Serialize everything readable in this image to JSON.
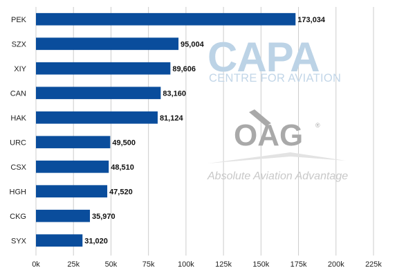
{
  "chart_data": {
    "type": "bar",
    "orientation": "horizontal",
    "categories": [
      "PEK",
      "SZX",
      "XIY",
      "CAN",
      "HAK",
      "URC",
      "CSX",
      "HGH",
      "CKG",
      "SYX"
    ],
    "values": [
      173034,
      95004,
      89606,
      83160,
      81124,
      49500,
      48510,
      47520,
      35970,
      31020
    ],
    "value_labels": [
      "173,034",
      "95,004",
      "89,606",
      "83,160",
      "81,124",
      "49,500",
      "48,510",
      "47,520",
      "35,970",
      "31,020"
    ],
    "xlim": [
      0,
      225000
    ],
    "xticks": [
      0,
      25000,
      50000,
      75000,
      100000,
      125000,
      150000,
      175000,
      200000,
      225000
    ],
    "xtick_labels": [
      "0k",
      "25k",
      "50k",
      "75k",
      "100k",
      "125k",
      "150k",
      "175k",
      "200k",
      "225k"
    ],
    "grid": "vertical",
    "bar_color": "#0a4d9c",
    "grid_color": "#cccccc",
    "title": "",
    "xlabel": "",
    "ylabel": ""
  },
  "watermarks": {
    "capa_logo": "CAPA",
    "capa_subtitle": "CENTRE FOR AVIATION",
    "oag_logo": "OAG",
    "oag_registered": "®",
    "oag_tagline": "Absolute Aviation Advantage"
  }
}
